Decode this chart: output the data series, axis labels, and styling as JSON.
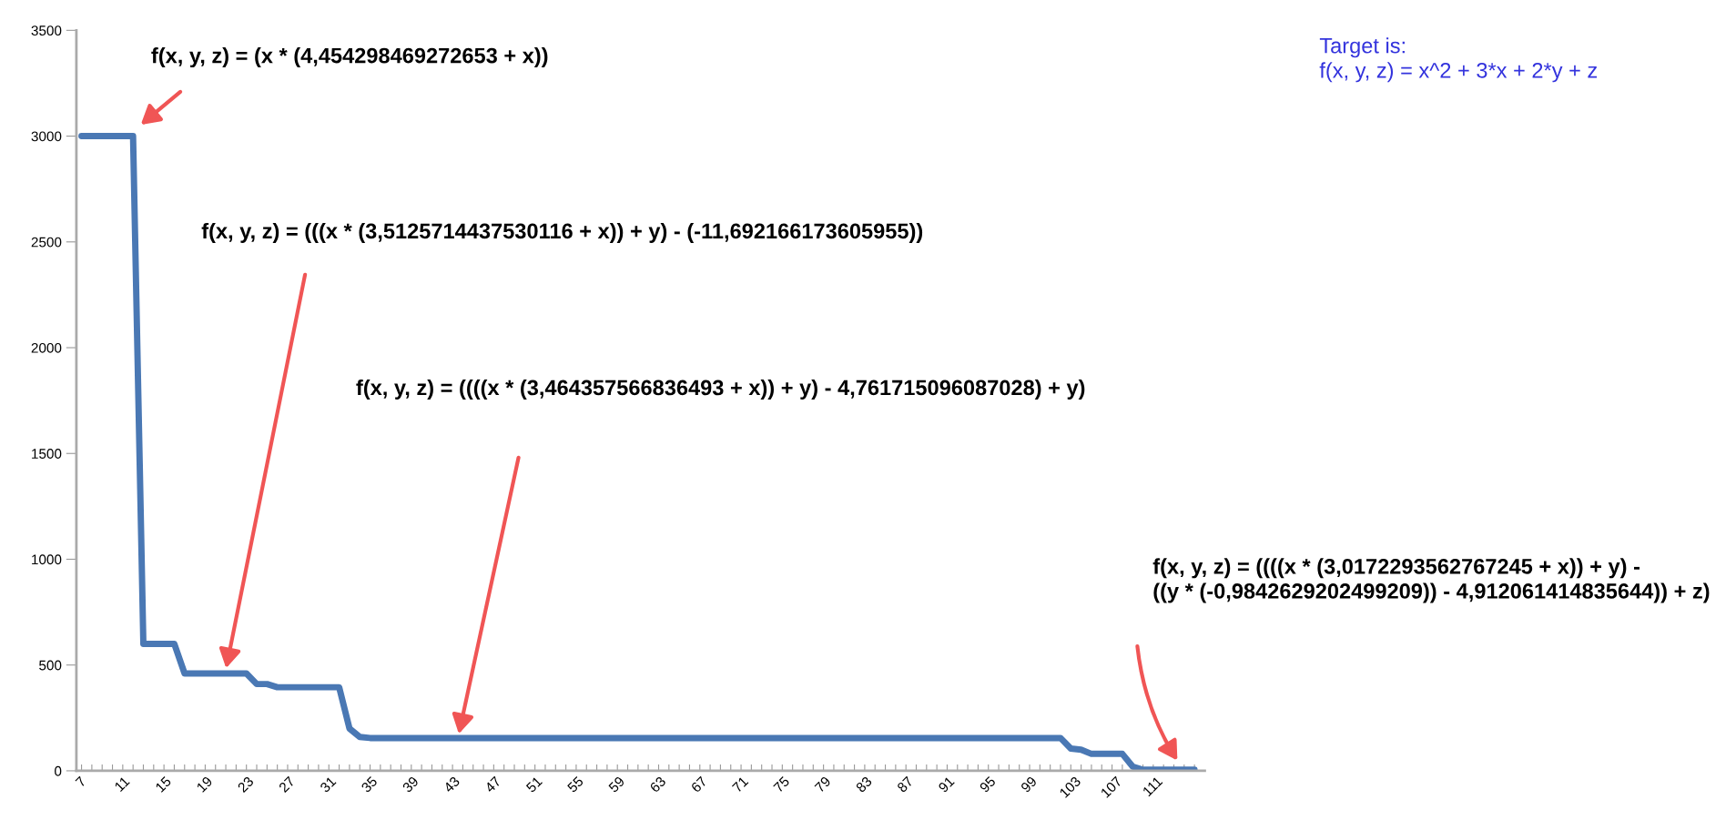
{
  "chart_data": {
    "type": "line",
    "x": [
      7,
      12,
      13,
      16,
      17,
      23,
      24,
      25,
      26,
      32,
      33,
      34,
      35,
      102,
      103,
      104,
      105,
      108,
      109,
      110,
      115
    ],
    "series": [
      {
        "color": "#4a78b4",
        "values": [
          3000,
          3000,
          600,
          600,
          460,
          460,
          410,
          410,
          395,
          395,
          200,
          160,
          155,
          155,
          105,
          100,
          80,
          80,
          20,
          5,
          5
        ]
      }
    ],
    "xlim": [
      6.5,
      116
    ],
    "xticks": [
      7,
      {
        "value": 8,
        "label": null
      },
      {
        "value": 9,
        "label": null
      },
      {
        "value": 10,
        "label": null
      },
      11,
      {
        "value": 12,
        "label": null
      },
      {
        "value": 13,
        "label": null
      },
      {
        "value": 14,
        "label": null
      },
      15,
      {
        "value": 16,
        "label": null
      },
      {
        "value": 17,
        "label": null
      },
      {
        "value": 18,
        "label": null
      },
      19,
      {
        "value": 20,
        "label": null
      },
      {
        "value": 21,
        "label": null
      },
      {
        "value": 22,
        "label": null
      },
      23,
      {
        "value": 24,
        "label": null
      },
      {
        "value": 25,
        "label": null
      },
      {
        "value": 26,
        "label": null
      },
      27,
      {
        "value": 28,
        "label": null
      },
      {
        "value": 29,
        "label": null
      },
      {
        "value": 30,
        "label": null
      },
      31,
      {
        "value": 32,
        "label": null
      },
      {
        "value": 33,
        "label": null
      },
      {
        "value": 34,
        "label": null
      },
      35,
      {
        "value": 36,
        "label": null
      },
      {
        "value": 37,
        "label": null
      },
      {
        "value": 38,
        "label": null
      },
      39,
      {
        "value": 40,
        "label": null
      },
      {
        "value": 41,
        "label": null
      },
      {
        "value": 42,
        "label": null
      },
      43,
      {
        "value": 44,
        "label": null
      },
      {
        "value": 45,
        "label": null
      },
      {
        "value": 46,
        "label": null
      },
      47,
      {
        "value": 48,
        "label": null
      },
      {
        "value": 49,
        "label": null
      },
      {
        "value": 50,
        "label": null
      },
      51,
      {
        "value": 52,
        "label": null
      },
      {
        "value": 53,
        "label": null
      },
      {
        "value": 54,
        "label": null
      },
      55,
      {
        "value": 56,
        "label": null
      },
      {
        "value": 57,
        "label": null
      },
      {
        "value": 58,
        "label": null
      },
      59,
      {
        "value": 60,
        "label": null
      },
      {
        "value": 61,
        "label": null
      },
      {
        "value": 62,
        "label": null
      },
      63,
      {
        "value": 64,
        "label": null
      },
      {
        "value": 65,
        "label": null
      },
      {
        "value": 66,
        "label": null
      },
      67,
      {
        "value": 68,
        "label": null
      },
      {
        "value": 69,
        "label": null
      },
      {
        "value": 70,
        "label": null
      },
      71,
      {
        "value": 72,
        "label": null
      },
      {
        "value": 73,
        "label": null
      },
      {
        "value": 74,
        "label": null
      },
      75,
      {
        "value": 76,
        "label": null
      },
      {
        "value": 77,
        "label": null
      },
      {
        "value": 78,
        "label": null
      },
      79,
      {
        "value": 80,
        "label": null
      },
      {
        "value": 81,
        "label": null
      },
      {
        "value": 82,
        "label": null
      },
      83,
      {
        "value": 84,
        "label": null
      },
      {
        "value": 85,
        "label": null
      },
      {
        "value": 86,
        "label": null
      },
      87,
      {
        "value": 88,
        "label": null
      },
      {
        "value": 89,
        "label": null
      },
      {
        "value": 90,
        "label": null
      },
      91,
      {
        "value": 92,
        "label": null
      },
      {
        "value": 93,
        "label": null
      },
      {
        "value": 94,
        "label": null
      },
      95,
      {
        "value": 96,
        "label": null
      },
      {
        "value": 97,
        "label": null
      },
      {
        "value": 98,
        "label": null
      },
      99,
      {
        "value": 100,
        "label": null
      },
      {
        "value": 101,
        "label": null
      },
      {
        "value": 102,
        "label": null
      },
      103,
      {
        "value": 104,
        "label": null
      },
      {
        "value": 105,
        "label": null
      },
      {
        "value": 106,
        "label": null
      },
      107,
      {
        "value": 108,
        "label": null
      },
      {
        "value": 109,
        "label": null
      },
      {
        "value": 110,
        "label": null
      },
      111,
      {
        "value": 112,
        "label": null
      },
      {
        "value": 113,
        "label": null
      },
      {
        "value": 114,
        "label": null
      },
      {
        "value": 115,
        "label": null
      }
    ],
    "ylim": [
      0,
      3500
    ],
    "yticks": [
      0,
      500,
      1000,
      1500,
      2000,
      2500,
      3000,
      3500
    ],
    "annotations": [
      "f(x, y, z) = (x * (4,454298469272653 + x))",
      "f(x, y, z) = (((x * (3,5125714437530116 + x)) + y) - (-11,692166173605955))",
      "f(x, y, z) = ((((x * (3,464357566836493 + x)) + y) - 4,761715096087028) + y)",
      "f(x, y, z) = ((((x * (3,0172293562767245 + x)) + y) -\n((y * (-0,9842629202499209)) - 4,912061414835644)) + z)",
      "Target is:\nf(x, y, z) = x^2 + 3*x + 2*y + z"
    ]
  }
}
